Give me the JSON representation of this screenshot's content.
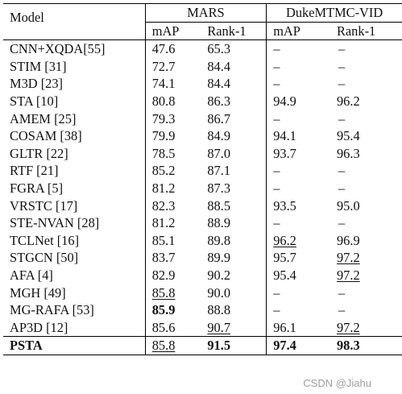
{
  "table": {
    "header": {
      "model": "Model",
      "groups": [
        "MARS",
        "DukeMTMC-VID"
      ],
      "metrics": [
        "mAP",
        "Rank-1",
        "mAP",
        "Rank-1"
      ]
    },
    "rows": [
      {
        "model": "CNN+XQDA[55]",
        "v": [
          "47.6",
          "65.3",
          "–",
          "–"
        ]
      },
      {
        "model": "STIM [31]",
        "v": [
          "72.7",
          "84.4",
          "–",
          "–"
        ]
      },
      {
        "model": "M3D [23]",
        "v": [
          "74.1",
          "84.4",
          "–",
          "–"
        ]
      },
      {
        "model": "STA [10]",
        "v": [
          "80.8",
          "86.3",
          "94.9",
          "96.2"
        ]
      },
      {
        "model": "AMEM [25]",
        "v": [
          "79.3",
          "86.7",
          "–",
          "–"
        ]
      },
      {
        "model": "COSAM [38]",
        "v": [
          "79.9",
          "84.9",
          "94.1",
          "95.4"
        ]
      },
      {
        "model": "GLTR [22]",
        "v": [
          "78.5",
          "87.0",
          "93.7",
          "96.3"
        ]
      },
      {
        "model": "RTF [21]",
        "v": [
          "85.2",
          "87.1",
          "–",
          "–"
        ]
      },
      {
        "model": "FGRA [5]",
        "v": [
          "81.2",
          "87.3",
          "–",
          "–"
        ]
      },
      {
        "model": "VRSTC [17]",
        "v": [
          "82.3",
          "88.5",
          "93.5",
          "95.0"
        ]
      },
      {
        "model": "STE-NVAN [28]",
        "v": [
          "81.2",
          "88.9",
          "–",
          "–"
        ]
      },
      {
        "model": "TCLNet [16]",
        "v": [
          "85.1",
          "89.8",
          "96.2",
          "96.9"
        ]
      },
      {
        "model": "STGCN [50]",
        "v": [
          "83.7",
          "89.9",
          "95.7",
          "97.2"
        ]
      },
      {
        "model": "AFA [4]",
        "v": [
          "82.9",
          "90.2",
          "95.4",
          "97.2"
        ]
      },
      {
        "model": "MGH [49]",
        "v": [
          "85.8",
          "90.0",
          "–",
          "–"
        ]
      },
      {
        "model": "MG-RAFA [53]",
        "v": [
          "85.9",
          "88.8",
          "–",
          "–"
        ]
      },
      {
        "model": "AP3D [12]",
        "v": [
          "85.6",
          "90.7",
          "96.1",
          "97.2"
        ]
      },
      {
        "model": "PSTA",
        "v": [
          "85.8",
          "91.5",
          "97.4",
          "98.3"
        ]
      }
    ]
  },
  "watermark": "CSDN @Jiahu"
}
